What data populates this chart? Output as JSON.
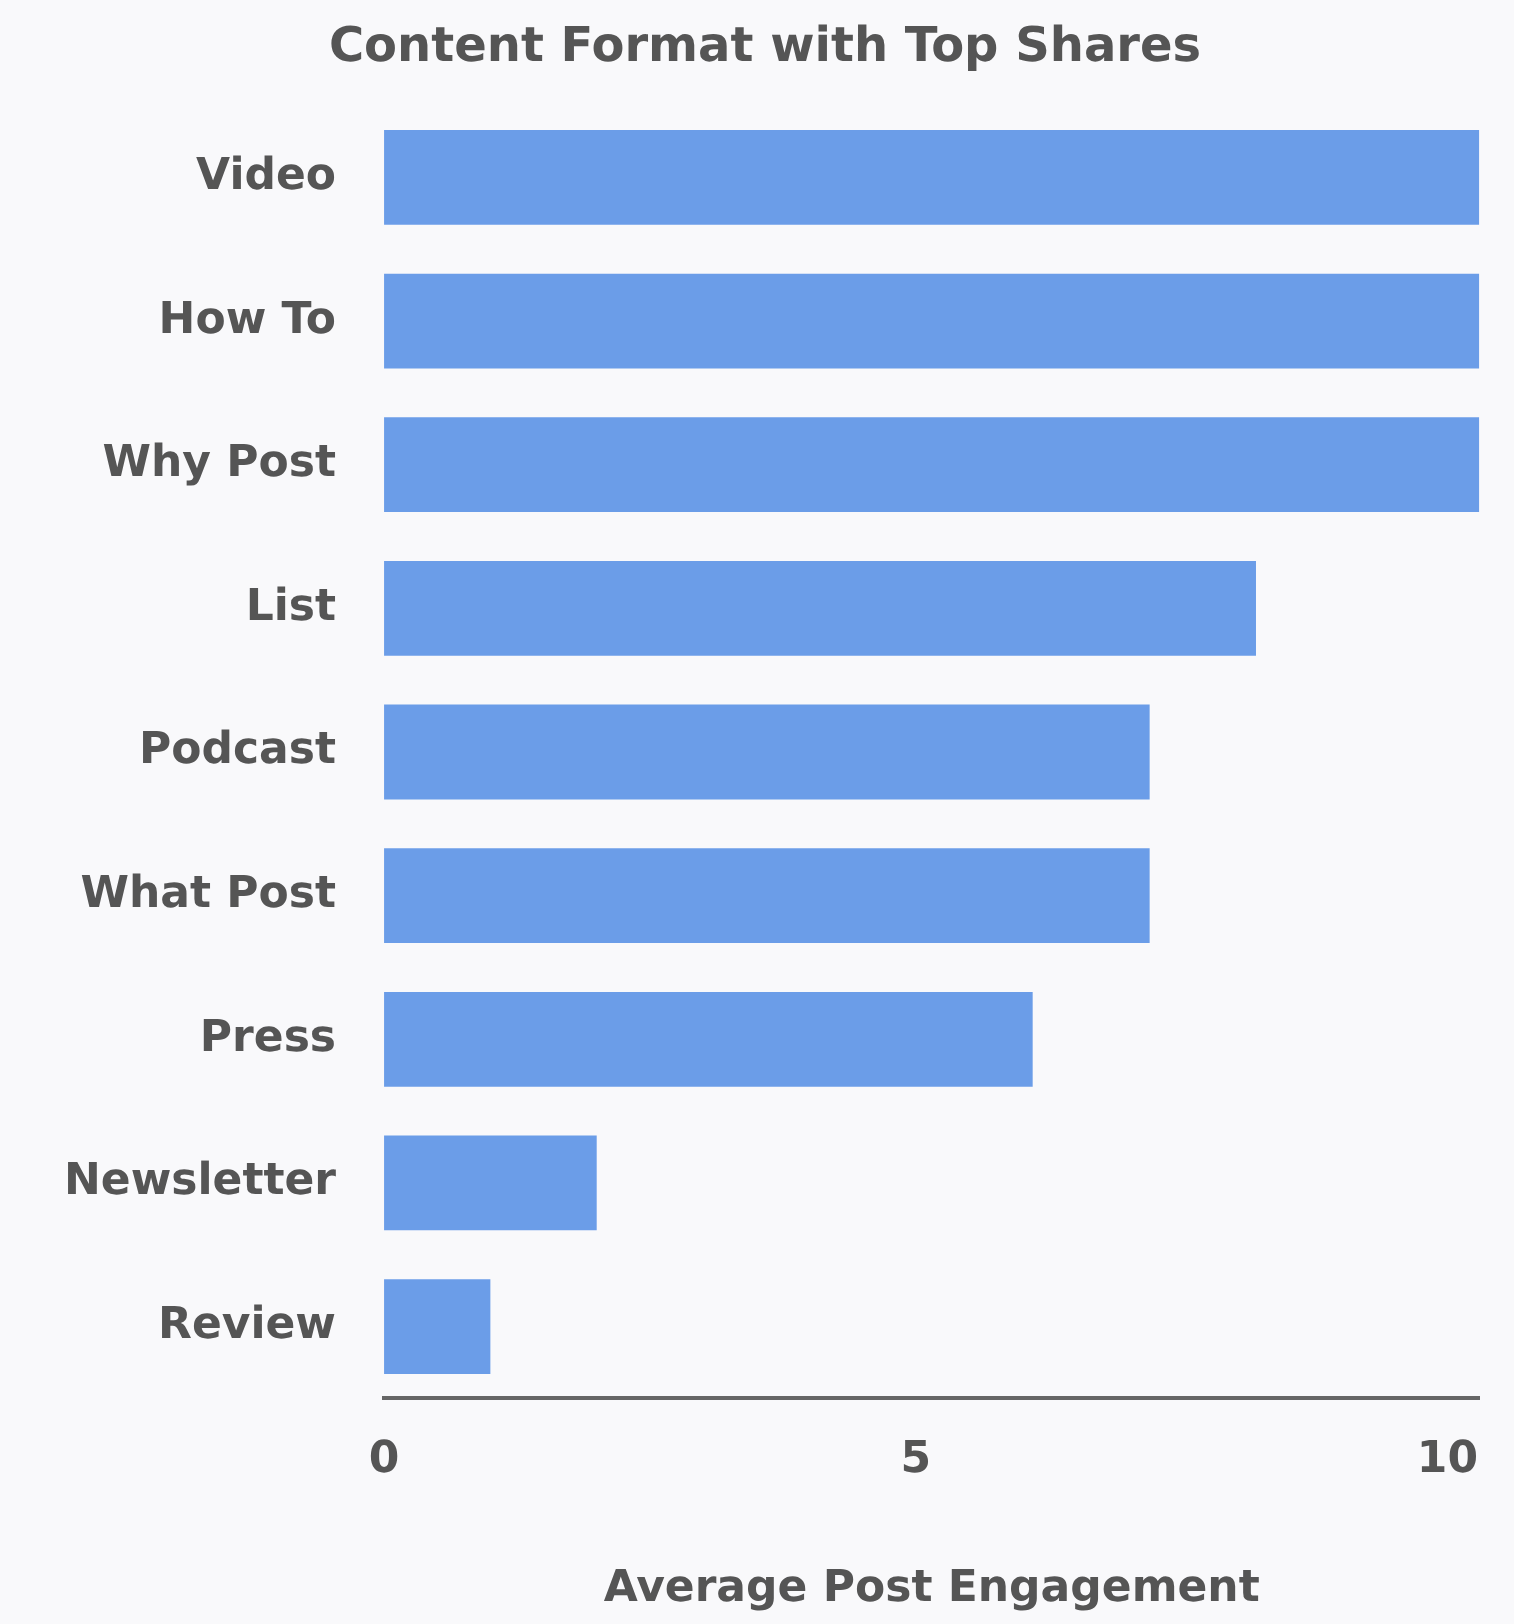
{
  "chart_data": {
    "type": "bar",
    "orientation": "horizontal",
    "title": "Content Format with Top Shares",
    "xlabel": "Average Post Engagement",
    "categories": [
      "Video",
      "How To",
      "Why Post",
      "List",
      "Podcast",
      "What Post",
      "Press",
      "Newsletter",
      "Review"
    ],
    "values": [
      10.3,
      10.3,
      10.3,
      8.2,
      7.2,
      7.2,
      6.1,
      2.0,
      1.0
    ],
    "color": "#6b9de8",
    "xlim": [
      0,
      10.3
    ],
    "xticks": [
      0,
      5,
      10
    ],
    "grid": false,
    "legend": false
  }
}
